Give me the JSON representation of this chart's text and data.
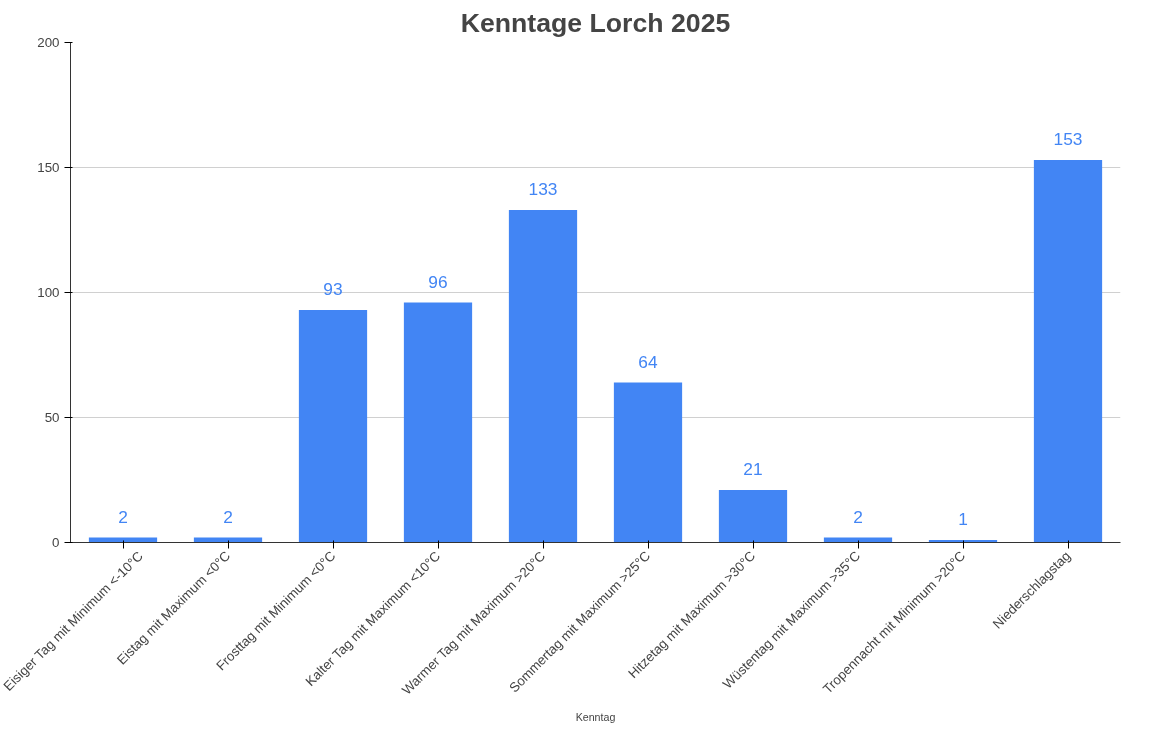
{
  "chart_data": {
    "type": "bar",
    "title": "Kenntage Lorch 2025",
    "xlabel": "Kenntag",
    "categories": [
      "Eisiger Tag mit Minimum <-10°C",
      "Eistag mit Maximum <0°C",
      "Frosttag mit Minimum <0°C",
      "Kalter Tag mit Maximum <10°C",
      "Warmer Tag mit Maximum >20°C",
      "Sommertag mit Maximum >25°C",
      "Hitzetag mit Maximum >30°C",
      "Wüstentag mit Maximum >35°C",
      "Tropennacht mit Minimum >20°C",
      "Niederschlagstag"
    ],
    "values": [
      2,
      2,
      93,
      96,
      133,
      64,
      21,
      2,
      1,
      153
    ],
    "color": "#4285f4",
    "ylim": [
      0,
      200
    ],
    "yticks": [
      0,
      50,
      100,
      150,
      200
    ],
    "grid": "y",
    "data_labels": true
  }
}
